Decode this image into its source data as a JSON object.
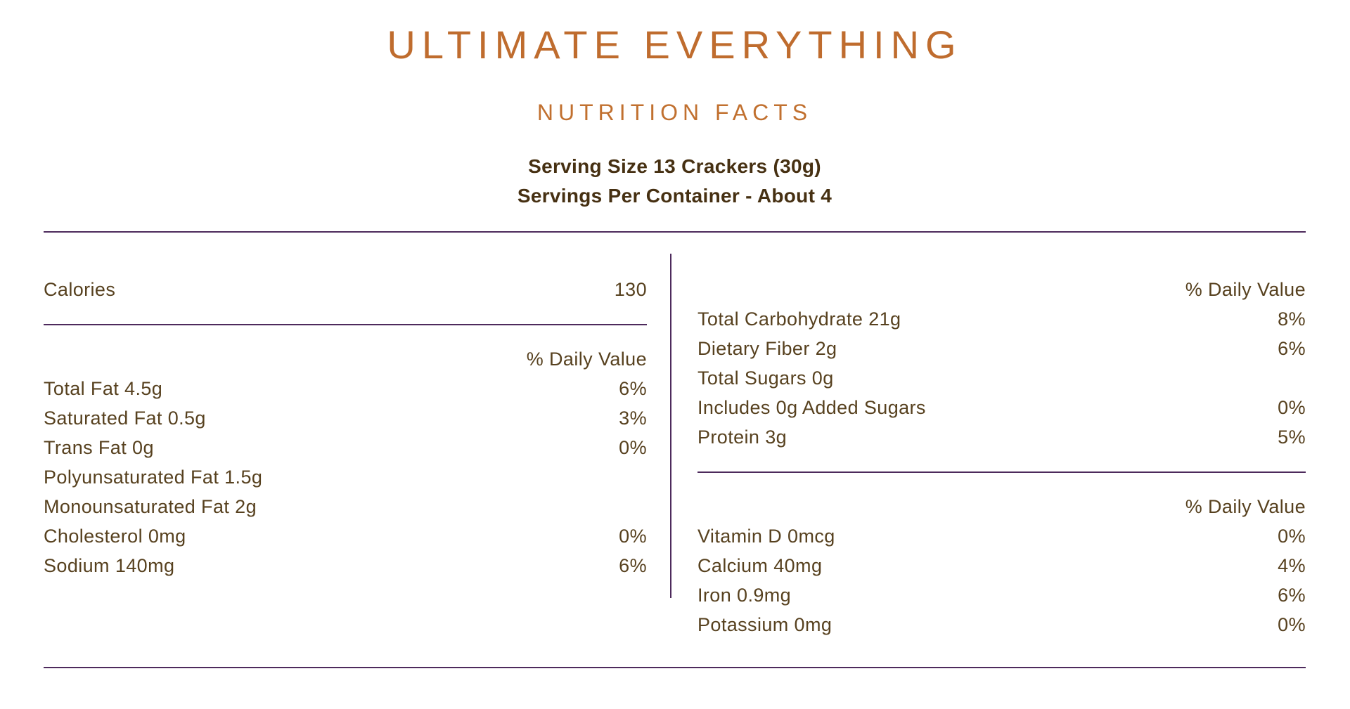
{
  "header": {
    "title": "ULTIMATE EVERYTHING",
    "subtitle": "NUTRITION FACTS",
    "serving_size": "Serving Size 13 Crackers (30g)",
    "servings_per_container": "Servings Per Container - About 4"
  },
  "colors": {
    "accent_orange": "#BF6C2E",
    "text_brown": "#57411F",
    "bold_brown": "#463012",
    "rule_purple": "#4D2A5C"
  },
  "left_column": {
    "calories_label": "Calories",
    "calories_value": "130",
    "daily_value_header": "% Daily Value",
    "rows": [
      {
        "label": "Total Fat 4.5g",
        "value": "6%"
      },
      {
        "label": "Saturated Fat 0.5g",
        "value": "3%"
      },
      {
        "label": "Trans Fat 0g",
        "value": "0%"
      },
      {
        "label": "Polyunsaturated Fat 1.5g",
        "value": ""
      },
      {
        "label": "Monounsaturated Fat 2g",
        "value": ""
      },
      {
        "label": "Cholesterol 0mg",
        "value": "0%"
      },
      {
        "label": "Sodium 140mg",
        "value": "6%"
      }
    ]
  },
  "right_column": {
    "daily_value_header_top": "% Daily Value",
    "top_rows": [
      {
        "label": "Total Carbohydrate 21g",
        "value": "8%"
      },
      {
        "label": "Dietary Fiber 2g",
        "value": "6%"
      },
      {
        "label": "Total Sugars 0g",
        "value": ""
      },
      {
        "label": "Includes 0g Added Sugars",
        "value": "0%"
      },
      {
        "label": "Protein 3g",
        "value": "5%"
      }
    ],
    "daily_value_header_bottom": "% Daily Value",
    "bottom_rows": [
      {
        "label": "Vitamin D 0mcg",
        "value": "0%"
      },
      {
        "label": "Calcium 40mg",
        "value": "4%"
      },
      {
        "label": "Iron 0.9mg",
        "value": "6%"
      },
      {
        "label": "Potassium 0mg",
        "value": "0%"
      }
    ]
  }
}
